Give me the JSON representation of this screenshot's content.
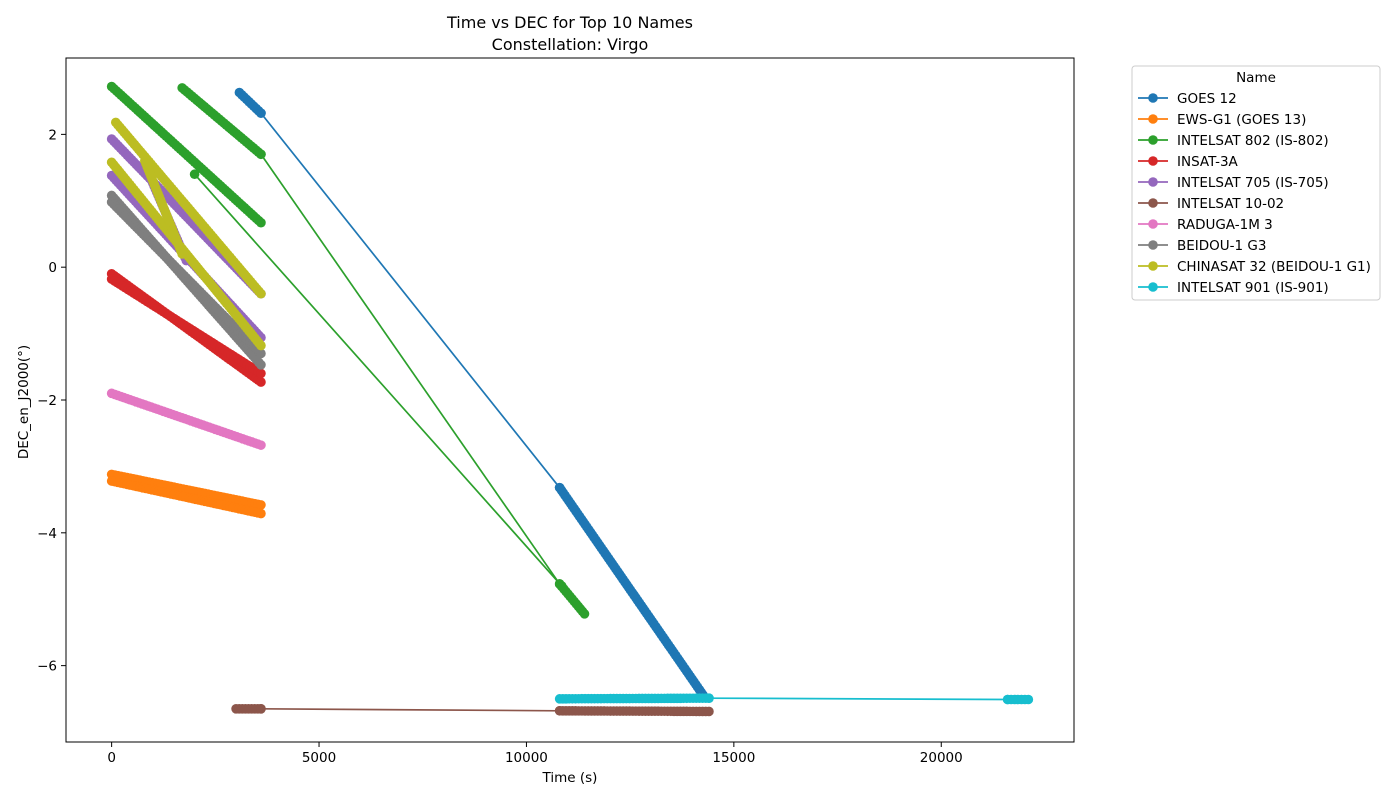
{
  "chart_data": {
    "type": "line",
    "title": "Time vs DEC for Top 10 Names",
    "subtitle": "Constellation: Virgo",
    "xlabel": "Time (s)",
    "ylabel": "DEC_en_J2000(°)",
    "xlim": [
      -1100,
      23200
    ],
    "ylim": [
      -7.15,
      3.15
    ],
    "xticks": [
      0,
      5000,
      10000,
      15000,
      20000
    ],
    "xtick_labels": [
      "0",
      "5000",
      "10000",
      "15000",
      "20000"
    ],
    "yticks": [
      2,
      0,
      -2,
      -4,
      -6
    ],
    "ytick_labels": [
      "2",
      "0",
      "−2",
      "−4",
      "−6"
    ],
    "grid": false,
    "marker": "circle",
    "legend": {
      "title": "Name",
      "placement": "outside-top-right"
    },
    "series": [
      {
        "name": "GOES 12",
        "color": "#1f77b4",
        "segments": [
          {
            "x": [
              3080,
              3600
            ],
            "y": [
              2.63,
              2.32
            ]
          },
          {
            "x": [
              3600,
              10800
            ],
            "y": [
              2.32,
              -3.32
            ]
          },
          {
            "x": [
              10800,
              14300
            ],
            "y": [
              -3.32,
              -6.48
            ]
          }
        ]
      },
      {
        "name": "EWS-G1 (GOES 13)",
        "color": "#ff7f0e",
        "segments": [
          {
            "x": [
              0,
              3600
            ],
            "y": [
              -3.12,
              -3.58
            ]
          },
          {
            "x": [
              0,
              3600
            ],
            "y": [
              -3.22,
              -3.71
            ]
          }
        ]
      },
      {
        "name": "INTELSAT 802 (IS-802)",
        "color": "#2ca02c",
        "segments": [
          {
            "x": [
              0,
              3600
            ],
            "y": [
              2.72,
              0.67
            ]
          },
          {
            "x": [
              1700,
              3600
            ],
            "y": [
              2.7,
              1.7
            ]
          },
          {
            "x": [
              3600,
              10800
            ],
            "y": [
              1.7,
              -4.77
            ]
          },
          {
            "x": [
              2000,
              10850
            ],
            "y": [
              1.4,
              -4.8
            ]
          },
          {
            "x": [
              10800,
              11400
            ],
            "y": [
              -4.77,
              -5.22
            ]
          }
        ]
      },
      {
        "name": "INSAT-3A",
        "color": "#d62728",
        "segments": [
          {
            "x": [
              0,
              3600
            ],
            "y": [
              -0.1,
              -1.73
            ]
          },
          {
            "x": [
              0,
              3600
            ],
            "y": [
              -0.18,
              -1.6
            ]
          }
        ]
      },
      {
        "name": "INTELSAT 705 (IS-705)",
        "color": "#9467bd",
        "segments": [
          {
            "x": [
              0,
              3600
            ],
            "y": [
              1.93,
              -0.4
            ]
          },
          {
            "x": [
              0,
              3600
            ],
            "y": [
              1.38,
              -1.06
            ]
          },
          {
            "x": [
              900,
              1800
            ],
            "y": [
              1.4,
              0.1
            ]
          }
        ]
      },
      {
        "name": "INTELSAT 10-02",
        "color": "#8c564b",
        "segments": [
          {
            "x": [
              3000,
              3600
            ],
            "y": [
              -6.65,
              -6.65
            ]
          },
          {
            "x": [
              3600,
              10800
            ],
            "y": [
              -6.65,
              -6.68
            ]
          },
          {
            "x": [
              10800,
              14400
            ],
            "y": [
              -6.68,
              -6.69
            ]
          }
        ]
      },
      {
        "name": "RADUGA-1M 3",
        "color": "#e377c2",
        "segments": [
          {
            "x": [
              0,
              3600
            ],
            "y": [
              -1.9,
              -2.68
            ]
          }
        ]
      },
      {
        "name": "BEIDOU-1 G3",
        "color": "#7f7f7f",
        "segments": [
          {
            "x": [
              0,
              3600
            ],
            "y": [
              1.08,
              -1.47
            ]
          },
          {
            "x": [
              0,
              3600
            ],
            "y": [
              0.98,
              -1.3
            ]
          }
        ]
      },
      {
        "name": "CHINASAT 32 (BEIDOU-1 G1)",
        "color": "#bcbd22",
        "segments": [
          {
            "x": [
              0,
              3600
            ],
            "y": [
              1.58,
              -1.18
            ]
          },
          {
            "x": [
              100,
              3600
            ],
            "y": [
              2.18,
              -0.4
            ]
          },
          {
            "x": [
              800,
              1700
            ],
            "y": [
              1.6,
              0.2
            ]
          }
        ]
      },
      {
        "name": "INTELSAT 901 (IS-901)",
        "color": "#17becf",
        "segments": [
          {
            "x": [
              10800,
              14400
            ],
            "y": [
              -6.5,
              -6.49
            ]
          },
          {
            "x": [
              14400,
              21600
            ],
            "y": [
              -6.49,
              -6.51
            ]
          },
          {
            "x": [
              21600,
              22100
            ],
            "y": [
              -6.51,
              -6.51
            ]
          }
        ]
      }
    ]
  }
}
